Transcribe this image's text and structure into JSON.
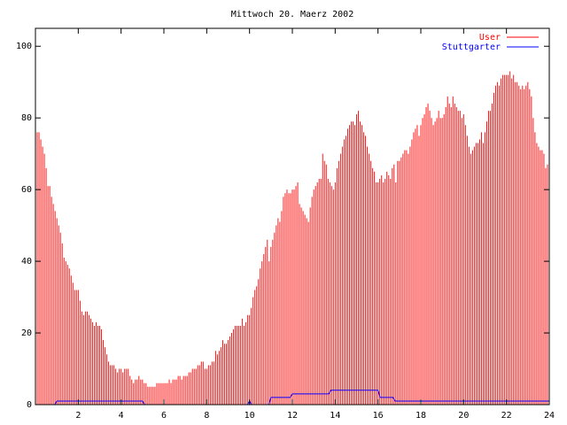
{
  "chart_data": {
    "type": "impulse",
    "title": "Mittwoch 20. Maerz 2002",
    "xlim": [
      0,
      24
    ],
    "xticks": [
      2,
      4,
      6,
      8,
      10,
      12,
      14,
      16,
      18,
      20,
      22,
      24
    ],
    "ylim": [
      0,
      105
    ],
    "yticks": [
      0,
      20,
      40,
      60,
      80,
      100
    ],
    "legend": "top-right",
    "series": [
      {
        "name": "User",
        "color": "#ff0000",
        "style": "impulses",
        "x": [
          0,
          0.0833,
          0.1667,
          0.25,
          0.3333,
          0.4167,
          0.5,
          0.5833,
          0.6667,
          0.75,
          0.8333,
          0.9167,
          1,
          1.0833,
          1.1667,
          1.25,
          1.3333,
          1.4167,
          1.5,
          1.5833,
          1.6667,
          1.75,
          1.8333,
          1.9167,
          2,
          2.0833,
          2.1667,
          2.25,
          2.3333,
          2.4167,
          2.5,
          2.5833,
          2.6667,
          2.75,
          2.8333,
          2.9167,
          3,
          3.0833,
          3.1667,
          3.25,
          3.3333,
          3.4167,
          3.5,
          3.5833,
          3.6667,
          3.75,
          3.8333,
          3.9167,
          4,
          4.0833,
          4.1667,
          4.25,
          4.3333,
          4.4167,
          4.5,
          4.5833,
          4.6667,
          4.75,
          4.8333,
          4.9167,
          5,
          5.0833,
          5.1667,
          5.25,
          5.3333,
          5.4167,
          5.5,
          5.5833,
          5.6667,
          5.75,
          5.8333,
          5.9167,
          6,
          6.0833,
          6.1667,
          6.25,
          6.3333,
          6.4167,
          6.5,
          6.5833,
          6.6667,
          6.75,
          6.8333,
          6.9167,
          7,
          7.0833,
          7.1667,
          7.25,
          7.3333,
          7.4167,
          7.5,
          7.5833,
          7.6667,
          7.75,
          7.8333,
          7.9167,
          8,
          8.0833,
          8.1667,
          8.25,
          8.3333,
          8.4167,
          8.5,
          8.5833,
          8.6667,
          8.75,
          8.8333,
          8.9167,
          9,
          9.0833,
          9.1667,
          9.25,
          9.3333,
          9.4167,
          9.5,
          9.5833,
          9.6667,
          9.75,
          9.8333,
          9.9167,
          10,
          10.0833,
          10.1667,
          10.25,
          10.3333,
          10.4167,
          10.5,
          10.5833,
          10.6667,
          10.75,
          10.8333,
          10.9167,
          11,
          11.0833,
          11.1667,
          11.25,
          11.3333,
          11.4167,
          11.5,
          11.5833,
          11.6667,
          11.75,
          11.8333,
          11.9167,
          12,
          12.0833,
          12.1667,
          12.25,
          12.3333,
          12.4167,
          12.5,
          12.5833,
          12.6667,
          12.75,
          12.8333,
          12.9167,
          13,
          13.0833,
          13.1667,
          13.25,
          13.3333,
          13.4167,
          13.5,
          13.5833,
          13.6667,
          13.75,
          13.8333,
          13.9167,
          14,
          14.0833,
          14.1667,
          14.25,
          14.3333,
          14.4167,
          14.5,
          14.5833,
          14.6667,
          14.75,
          14.8333,
          14.9167,
          15,
          15.0833,
          15.1667,
          15.25,
          15.3333,
          15.4167,
          15.5,
          15.5833,
          15.6667,
          15.75,
          15.8333,
          15.9167,
          16,
          16.0833,
          16.1667,
          16.25,
          16.3333,
          16.4167,
          16.5,
          16.5833,
          16.6667,
          16.75,
          16.8333,
          16.9167,
          17,
          17.0833,
          17.1667,
          17.25,
          17.3333,
          17.4167,
          17.5,
          17.5833,
          17.6667,
          17.75,
          17.8333,
          17.9167,
          18,
          18.0833,
          18.1667,
          18.25,
          18.3333,
          18.4167,
          18.5,
          18.5833,
          18.6667,
          18.75,
          18.8333,
          18.9167,
          19,
          19.0833,
          19.1667,
          19.25,
          19.3333,
          19.4167,
          19.5,
          19.5833,
          19.6667,
          19.75,
          19.8333,
          19.9167,
          20,
          20.0833,
          20.1667,
          20.25,
          20.3333,
          20.4167,
          20.5,
          20.5833,
          20.6667,
          20.75,
          20.8333,
          20.9167,
          21,
          21.0833,
          21.1667,
          21.25,
          21.3333,
          21.4167,
          21.5,
          21.5833,
          21.6667,
          21.75,
          21.8333,
          21.9167,
          22,
          22.0833,
          22.1667,
          22.25,
          22.3333,
          22.4167,
          22.5,
          22.5833,
          22.6667,
          22.75,
          22.8333,
          22.9167,
          23,
          23.0833,
          23.1667,
          23.25,
          23.3333,
          23.4167,
          23.5,
          23.5833,
          23.6667,
          23.75,
          23.8333,
          23.9167
        ],
        "values": [
          77,
          76,
          76,
          74,
          72,
          70,
          66,
          61,
          61,
          58,
          56,
          54,
          52,
          50,
          48,
          45,
          41,
          40,
          39,
          38,
          36,
          34,
          32,
          32,
          32,
          29,
          26,
          25,
          26,
          26,
          25,
          24,
          23,
          22,
          23,
          22,
          22,
          21,
          18,
          16,
          14,
          12,
          11,
          11,
          11,
          10,
          9,
          10,
          10,
          9,
          10,
          10,
          10,
          8,
          7,
          6,
          7,
          7,
          8,
          7,
          7,
          6,
          6,
          5,
          5,
          5,
          5,
          5,
          6,
          6,
          6,
          6,
          6,
          6,
          6,
          7,
          6,
          7,
          7,
          7,
          8,
          8,
          7,
          8,
          8,
          8,
          9,
          9,
          10,
          10,
          10,
          11,
          11,
          12,
          12,
          10,
          10,
          11,
          11,
          12,
          12,
          15,
          14,
          15,
          16,
          18,
          17,
          17,
          18,
          19,
          20,
          21,
          22,
          22,
          22,
          22,
          24,
          22,
          23,
          25,
          25,
          27,
          30,
          32,
          33,
          35,
          38,
          40,
          42,
          44,
          46,
          40,
          44,
          46,
          48,
          50,
          52,
          51,
          54,
          58,
          59,
          60,
          59,
          59,
          60,
          60,
          61,
          62,
          56,
          55,
          54,
          53,
          52,
          51,
          55,
          58,
          60,
          61,
          62,
          63,
          63,
          70,
          68,
          67,
          63,
          62,
          61,
          60,
          62,
          66,
          68,
          70,
          72,
          74,
          75,
          77,
          78,
          79,
          79,
          78,
          81,
          82,
          79,
          78,
          76,
          75,
          72,
          70,
          68,
          66,
          65,
          62,
          62,
          63,
          64,
          62,
          63,
          65,
          64,
          63,
          66,
          67,
          62,
          68,
          68,
          69,
          70,
          71,
          71,
          70,
          72,
          74,
          76,
          77,
          78,
          75,
          78,
          80,
          81,
          83,
          84,
          82,
          80,
          78,
          79,
          80,
          82,
          80,
          80,
          81,
          83,
          86,
          84,
          83,
          86,
          84,
          83,
          82,
          82,
          80,
          81,
          78,
          75,
          72,
          70,
          71,
          72,
          73,
          73,
          74,
          76,
          73,
          76,
          79,
          82,
          82,
          84,
          87,
          89,
          90,
          89,
          91,
          92,
          92,
          92,
          92,
          93,
          91,
          92,
          90,
          90,
          89,
          88,
          89,
          88,
          89,
          90,
          88,
          86,
          80,
          76,
          73,
          72,
          71,
          71,
          70,
          66,
          67
        ]
      },
      {
        "name": "Stuttgarter",
        "color": "#0000ff",
        "style": "lines",
        "x": [
          0,
          0.9,
          1,
          5,
          5.1,
          9.9,
          10,
          10.1,
          10.9,
          11,
          11.9,
          12,
          12.8,
          13,
          13.7,
          13.8,
          14.1,
          14.2,
          16,
          16.1,
          16.7,
          16.8,
          24
        ],
        "values": [
          0,
          0,
          1,
          1,
          0,
          0,
          1,
          0,
          0,
          2,
          2,
          3,
          3,
          3,
          3,
          4,
          4,
          4,
          4,
          2,
          2,
          1,
          1
        ]
      }
    ]
  }
}
